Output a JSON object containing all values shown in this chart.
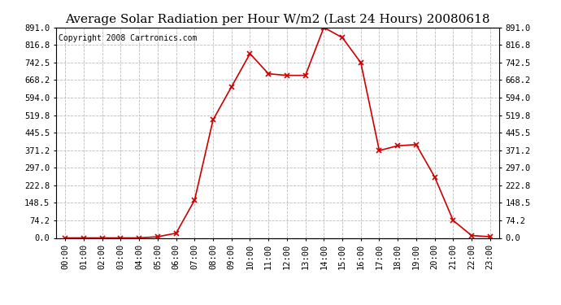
{
  "title": "Average Solar Radiation per Hour W/m2 (Last 24 Hours) 20080618",
  "copyright": "Copyright 2008 Cartronics.com",
  "hours": [
    0,
    1,
    2,
    3,
    4,
    5,
    6,
    7,
    8,
    9,
    10,
    11,
    12,
    13,
    14,
    15,
    16,
    17,
    18,
    19,
    20,
    21,
    22,
    23
  ],
  "values": [
    0,
    0,
    0,
    0,
    0,
    5,
    20,
    160,
    500,
    640,
    780,
    695,
    688,
    688,
    891,
    848,
    742,
    370,
    390,
    395,
    258,
    74,
    10,
    5
  ],
  "x_labels": [
    "00:00",
    "01:00",
    "02:00",
    "03:00",
    "04:00",
    "05:00",
    "06:00",
    "07:00",
    "08:00",
    "09:00",
    "10:00",
    "11:00",
    "12:00",
    "13:00",
    "14:00",
    "15:00",
    "16:00",
    "17:00",
    "18:00",
    "19:00",
    "20:00",
    "21:00",
    "22:00",
    "23:00"
  ],
  "y_ticks": [
    0.0,
    74.2,
    148.5,
    222.8,
    297.0,
    371.2,
    445.5,
    519.8,
    594.0,
    668.2,
    742.5,
    816.8,
    891.0
  ],
  "y_max": 891.0,
  "y_min": 0.0,
  "line_color": "#cc0000",
  "marker": "x",
  "marker_size": 4,
  "background_color": "#ffffff",
  "grid_color": "#bbbbbb",
  "title_fontsize": 11,
  "copyright_fontsize": 7,
  "tick_fontsize": 7.5
}
